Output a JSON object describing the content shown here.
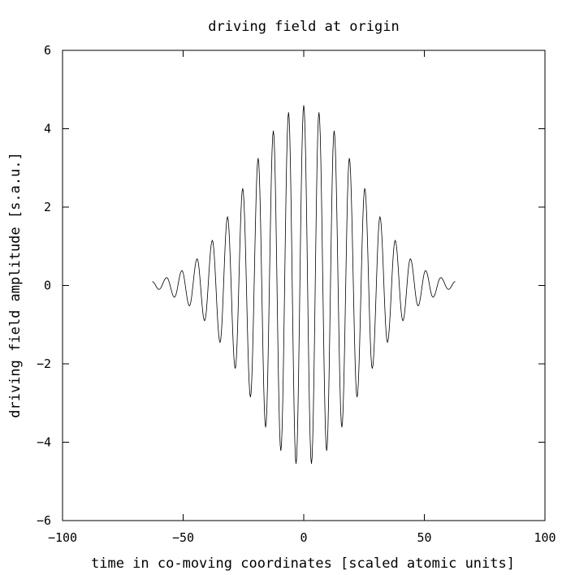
{
  "chart_data": {
    "type": "line",
    "title": "driving field at origin",
    "xlabel": "time in co-moving coordinates [scaled atomic units]",
    "ylabel": "driving field amplitude [s.a.u.]",
    "xlim": [
      -100,
      100
    ],
    "ylim": [
      -6,
      6
    ],
    "xticks": [
      "−100",
      "−50",
      "0",
      "50",
      "100"
    ],
    "yticks": [
      "−6",
      "−4",
      "−2",
      "0",
      "2",
      "4",
      "6"
    ],
    "xtick_values": [
      -100,
      -50,
      0,
      50,
      100
    ],
    "ytick_values": [
      -6,
      -4,
      -2,
      0,
      2,
      4,
      6
    ],
    "grid": false,
    "series_color": "#000000",
    "extrema": {
      "t": [
        -62.8,
        -60.0,
        -56.8,
        -53.6,
        -50.5,
        -47.4,
        -44.2,
        -41.1,
        -37.9,
        -34.7,
        -31.6,
        -28.4,
        -25.3,
        -22.1,
        -18.9,
        -15.8,
        -12.6,
        -9.5,
        -6.3,
        -3.2,
        0.0,
        3.2,
        6.3,
        9.5,
        12.6,
        15.8,
        18.9,
        22.1,
        25.3,
        28.4,
        31.6,
        34.7,
        37.9,
        41.1,
        44.2,
        47.4,
        50.5,
        53.6,
        56.8,
        60.0,
        62.8
      ],
      "amplitude": [
        0.1,
        -0.1,
        0.2,
        -0.3,
        0.38,
        -0.52,
        0.68,
        -0.9,
        1.15,
        -1.45,
        1.75,
        -2.12,
        2.48,
        -2.85,
        3.25,
        -3.62,
        3.95,
        -4.22,
        4.42,
        -4.55,
        4.6,
        -4.55,
        4.42,
        -4.22,
        3.95,
        -3.62,
        3.25,
        -2.85,
        2.48,
        -2.12,
        1.75,
        -1.45,
        1.15,
        -0.9,
        0.68,
        -0.52,
        0.38,
        -0.3,
        0.2,
        -0.1,
        0.1
      ]
    }
  }
}
